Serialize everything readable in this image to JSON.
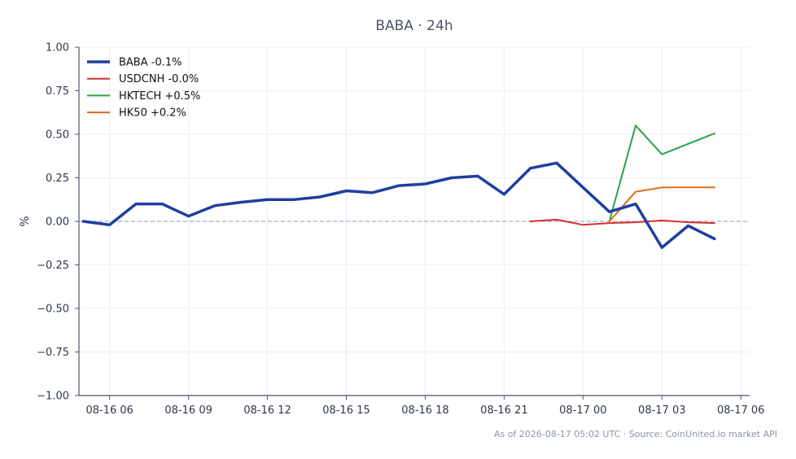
{
  "chart_data": {
    "type": "line",
    "title": "BABA · 24h",
    "xlabel": "",
    "ylabel": "%",
    "ylim": [
      -1.0,
      1.0
    ],
    "xlim": [
      "2026-08-16 04:50",
      "2026-08-17 06:20"
    ],
    "y_ticks": [
      1.0,
      0.75,
      0.5,
      0.25,
      0.0,
      -0.25,
      -0.5,
      -0.75,
      -1.0
    ],
    "y_tick_labels": [
      "1.00",
      "0.75",
      "0.50",
      "0.25",
      "0.00",
      "−0.25",
      "−0.50",
      "−0.75",
      "−1.00"
    ],
    "x_ticks": [
      "2026-08-16 06:00",
      "2026-08-16 09:00",
      "2026-08-16 12:00",
      "2026-08-16 15:00",
      "2026-08-16 18:00",
      "2026-08-16 21:00",
      "2026-08-17 00:00",
      "2026-08-17 03:00",
      "2026-08-17 06:00"
    ],
    "x_tick_labels": [
      "08-16 06",
      "08-16 09",
      "08-16 12",
      "08-16 15",
      "08-16 18",
      "08-16 21",
      "08-17 00",
      "08-17 03",
      "08-17 06"
    ],
    "grid": true,
    "legend_position": "top-left",
    "reference_line": {
      "y": 0,
      "style": "dashed",
      "color": "#8a9bb8"
    },
    "series": [
      {
        "name": "BABA -0.1%",
        "color": "#1f3f9e",
        "emphasis": "thick",
        "x": [
          "2026-08-16 05:00",
          "2026-08-16 06:00",
          "2026-08-16 07:00",
          "2026-08-16 08:00",
          "2026-08-16 09:00",
          "2026-08-16 10:00",
          "2026-08-16 11:00",
          "2026-08-16 12:00",
          "2026-08-16 13:00",
          "2026-08-16 14:00",
          "2026-08-16 15:00",
          "2026-08-16 16:00",
          "2026-08-16 17:00",
          "2026-08-16 18:00",
          "2026-08-16 19:00",
          "2026-08-16 20:00",
          "2026-08-16 21:00",
          "2026-08-16 22:00",
          "2026-08-16 23:00",
          "2026-08-17 00:00",
          "2026-08-17 01:00",
          "2026-08-17 02:00",
          "2026-08-17 03:00",
          "2026-08-17 04:00",
          "2026-08-17 05:00"
        ],
        "values": [
          0.0,
          -0.02,
          0.1,
          0.1,
          0.03,
          0.09,
          0.11,
          0.125,
          0.125,
          0.14,
          0.175,
          0.165,
          0.205,
          0.215,
          0.25,
          0.26,
          0.155,
          0.305,
          0.335,
          0.195,
          0.055,
          0.1,
          -0.15,
          -0.025,
          -0.1
        ]
      },
      {
        "name": "USDCNH -0.0%",
        "color": "#d62f2f",
        "emphasis": "normal",
        "x": [
          "2026-08-16 22:00",
          "2026-08-16 23:00",
          "2026-08-17 00:00",
          "2026-08-17 01:00",
          "2026-08-17 02:00",
          "2026-08-17 03:00",
          "2026-08-17 04:00",
          "2026-08-17 05:00"
        ],
        "values": [
          0.0,
          0.01,
          -0.02,
          -0.01,
          -0.005,
          0.005,
          -0.005,
          -0.01
        ]
      },
      {
        "name": "HKTECH +0.5%",
        "color": "#2aa34a",
        "emphasis": "normal",
        "x": [
          "2026-08-17 01:00",
          "2026-08-17 02:00",
          "2026-08-17 03:00",
          "2026-08-17 05:00"
        ],
        "values": [
          0.0,
          0.55,
          0.385,
          0.505
        ]
      },
      {
        "name": "HK50 +0.2%",
        "color": "#e06a1b",
        "emphasis": "normal",
        "x": [
          "2026-08-17 01:00",
          "2026-08-17 02:00",
          "2026-08-17 03:00",
          "2026-08-17 05:00"
        ],
        "values": [
          0.0,
          0.17,
          0.195,
          0.195
        ]
      }
    ]
  },
  "footer": "As of 2026-08-17 05:02 UTC · Source: CoinUnited.io market API",
  "colors": {
    "axis": "#4a5568",
    "grid": "#ebedf2",
    "zero_line": "#8a9bb8"
  }
}
